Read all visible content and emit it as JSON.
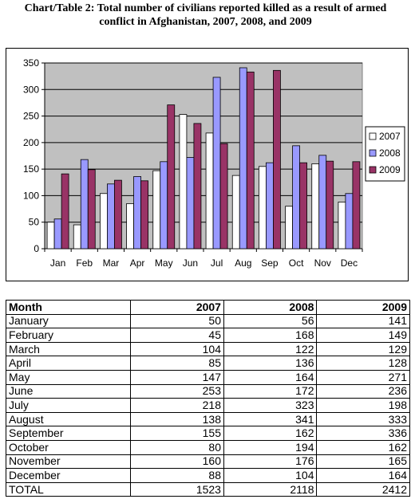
{
  "title": {
    "line1": "Chart/Table 2: Total number of civilians reported killed as a result of armed",
    "line2": "conflict in Afghanistan,  2007, 2008, and 2009"
  },
  "chart_data": {
    "type": "bar",
    "categories": [
      "Jan",
      "Feb",
      "Mar",
      "Apr",
      "May",
      "Jun",
      "Jul",
      "Aug",
      "Sep",
      "Oct",
      "Nov",
      "Dec"
    ],
    "series": [
      {
        "name": "2007",
        "values": [
          50,
          45,
          104,
          85,
          147,
          253,
          218,
          138,
          155,
          80,
          160,
          88
        ],
        "color": "#ffffff"
      },
      {
        "name": "2008",
        "values": [
          56,
          168,
          122,
          136,
          164,
          172,
          323,
          341,
          162,
          194,
          176,
          104
        ],
        "color": "#9999ff"
      },
      {
        "name": "2009",
        "values": [
          141,
          149,
          129,
          128,
          271,
          236,
          198,
          333,
          336,
          162,
          165,
          164
        ],
        "color": "#993366"
      }
    ],
    "ylim": [
      0,
      350
    ],
    "yticks": [
      0,
      50,
      100,
      150,
      200,
      250,
      300,
      350
    ],
    "grid": true,
    "plot_background": "#c0c0c0",
    "legend_position": "right"
  },
  "table": {
    "headers": [
      "Month",
      "2007",
      "2008",
      "2009"
    ],
    "rows": [
      [
        "January",
        "50",
        "56",
        "141"
      ],
      [
        "February",
        "45",
        "168",
        "149"
      ],
      [
        "March",
        "104",
        "122",
        "129"
      ],
      [
        "April",
        "85",
        "136",
        "128"
      ],
      [
        "May",
        "147",
        "164",
        "271"
      ],
      [
        "June",
        "253",
        "172",
        "236"
      ],
      [
        "July",
        "218",
        "323",
        "198"
      ],
      [
        "August",
        "138",
        "341",
        "333"
      ],
      [
        "September",
        "155",
        "162",
        "336"
      ],
      [
        "October",
        "80",
        "194",
        "162"
      ],
      [
        "November",
        "160",
        "176",
        "165"
      ],
      [
        "December",
        "88",
        "104",
        "164"
      ],
      [
        "TOTAL",
        "1523",
        "2118",
        "2412"
      ]
    ]
  }
}
